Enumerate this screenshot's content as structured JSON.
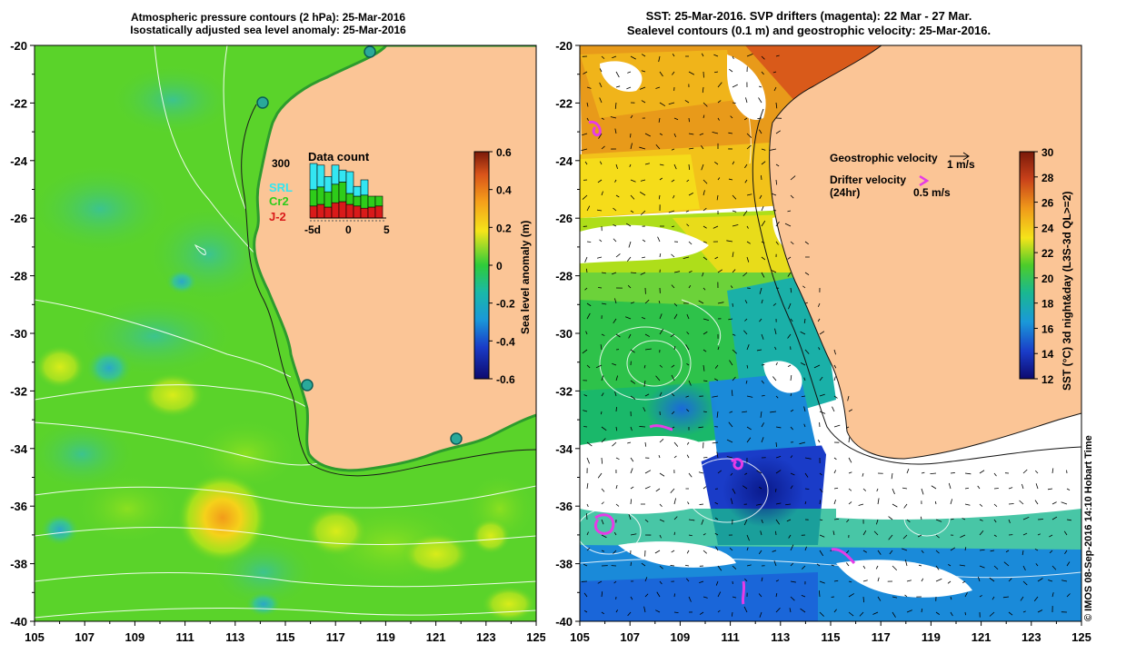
{
  "left_panel": {
    "title_line1": "Atmospheric pressure contours (2 hPa): 25-Mar-2016",
    "title_line2": "Isostatically adjusted sea level anomaly: 25-Mar-2016",
    "colorbar": {
      "label": "Sea level anomaly (m)",
      "ticks": [
        "0.6",
        "0.4",
        "0.2",
        "0",
        "-0.2",
        "-0.4",
        "-0.6"
      ]
    },
    "inset": {
      "title": "Data count",
      "max_label": "300",
      "legend": [
        {
          "label": "SRL",
          "color": "#33e6f2"
        },
        {
          "label": "Cr2",
          "color": "#2ecc1a"
        },
        {
          "label": "J-2",
          "color": "#d91a1a"
        }
      ],
      "x_ticks": [
        "-5d",
        "0",
        "5"
      ],
      "bars": [
        {
          "red": 0.22,
          "green": 0.3,
          "cyan": 0.48
        },
        {
          "red": 0.25,
          "green": 0.32,
          "cyan": 0.4
        },
        {
          "red": 0.2,
          "green": 0.28,
          "cyan": 0.28
        },
        {
          "red": 0.28,
          "green": 0.34,
          "cyan": 0.35
        },
        {
          "red": 0.3,
          "green": 0.36,
          "cyan": 0.22
        },
        {
          "red": 0.25,
          "green": 0.2,
          "cyan": 0.4
        },
        {
          "red": 0.22,
          "green": 0.18,
          "cyan": 0.18
        },
        {
          "red": 0.18,
          "green": 0.24,
          "cyan": 0.28
        },
        {
          "red": 0.2,
          "green": 0.2,
          "cyan": 0.0
        },
        {
          "red": 0.22,
          "green": 0.18,
          "cyan": 0.0
        }
      ]
    }
  },
  "right_panel": {
    "title_line1": "SST: 25-Mar-2016. SVP drifters (magenta): 22 Mar - 27 Mar.",
    "title_line2": "Sealevel contours (0.1 m) and geostrophic velocity: 25-Mar-2016.",
    "colorbar": {
      "label": "SST (°C) 3d night&day (L3S-3d QL>=2)",
      "ticks": [
        "30",
        "28",
        "26",
        "24",
        "22",
        "20",
        "18",
        "16",
        "14",
        "12"
      ]
    },
    "legend": {
      "geo_label": "Geostrophic velocity",
      "geo_scale": "1 m/s",
      "drifter_label": "Drifter velocity",
      "drifter_sub": "(24hr)",
      "drifter_scale": "0.5 m/s"
    }
  },
  "axes": {
    "lon_ticks": [
      "105",
      "107",
      "109",
      "111",
      "113",
      "115",
      "117",
      "119",
      "121",
      "123",
      "125"
    ],
    "lat_ticks": [
      "-20",
      "-22",
      "-24",
      "-26",
      "-28",
      "-30",
      "-32",
      "-34",
      "-36",
      "-38",
      "-40"
    ]
  },
  "credit": "© IMOS 08-Sep-2016 14:10 Hobart Time",
  "colors": {
    "land": "#fbc596",
    "sla_base": "#5ad32a",
    "drifter": "#e63ce6"
  }
}
